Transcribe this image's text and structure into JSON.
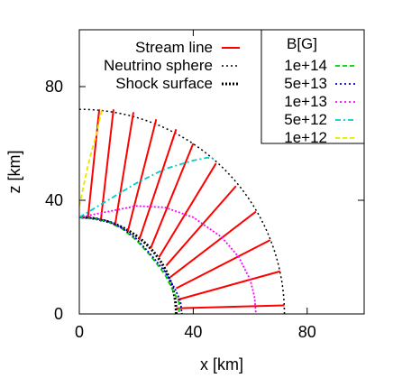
{
  "chart_data": {
    "type": "line",
    "xlabel": "x [km]",
    "ylabel": "z [km]",
    "xlim": [
      0,
      100
    ],
    "ylim": [
      0,
      100
    ],
    "xticks": [
      0,
      40,
      80
    ],
    "yticks": [
      0,
      40,
      80
    ],
    "grid": false,
    "legend_left": {
      "placement": "top-left",
      "entries": [
        {
          "name": "Stream line",
          "color": "#ff0000",
          "style": "solid"
        },
        {
          "name": "Neutrino sphere",
          "color": "#000000",
          "style": "dotted"
        },
        {
          "name": "Shock surface",
          "color": "#000000",
          "style": "dotted-bold"
        }
      ]
    },
    "legend_right": {
      "placement": "top-right",
      "title": "B[G]",
      "entries": [
        {
          "name": "1e+14",
          "color": "#00cc00",
          "style": "dashed"
        },
        {
          "name": "5e+13",
          "color": "#0000cc",
          "style": "dotted"
        },
        {
          "name": "1e+13",
          "color": "#ff00ff",
          "style": "dotted"
        },
        {
          "name": "5e+12",
          "color": "#00cccc",
          "style": "dashdot"
        },
        {
          "name": "1e+12",
          "color": "#e6e600",
          "style": "dashed"
        }
      ]
    },
    "series": [
      {
        "key": "neutrino_sphere",
        "shape": "arc",
        "radius_km": 34,
        "angle_range_deg": [
          0,
          90
        ],
        "color": "#000000"
      },
      {
        "key": "shock_surface",
        "shape": "arc",
        "radius_km": 72,
        "angle_range_deg": [
          0,
          90
        ],
        "color": "#000000"
      },
      {
        "key": "stream_lines",
        "shape": "radial_segments",
        "color": "#ff0000",
        "segments": [
          {
            "x": [
              34,
              72
            ],
            "z": [
              2,
              3
            ]
          },
          {
            "x": [
              34.5,
              70.5
            ],
            "z": [
              5,
              15
            ]
          },
          {
            "x": [
              34,
              67
            ],
            "z": [
              9,
              26
            ]
          },
          {
            "x": [
              32,
              62
            ],
            "z": [
              13,
              36
            ]
          },
          {
            "x": [
              30.5,
              55
            ],
            "z": [
              17,
              45
            ]
          },
          {
            "x": [
              28,
              48
            ],
            "z": [
              20,
              53
            ]
          },
          {
            "x": [
              25,
              40
            ],
            "z": [
              23,
              60
            ]
          },
          {
            "x": [
              21,
              34
            ],
            "z": [
              26,
              65
            ]
          },
          {
            "x": [
              17,
              27
            ],
            "z": [
              29,
              68.5
            ]
          },
          {
            "x": [
              12.5,
              19
            ],
            "z": [
              31,
              71
            ]
          },
          {
            "x": [
              7.5,
              12
            ],
            "z": [
              32.5,
              72
            ]
          },
          {
            "x": [
              3,
              7
            ],
            "z": [
              33.5,
              72
            ]
          }
        ]
      },
      {
        "key": "B_1e14",
        "color": "#00cc00",
        "x": [
          0,
          5,
          10,
          15,
          20,
          25,
          30,
          33,
          35,
          35
        ],
        "z": [
          34,
          33.6,
          32.5,
          30,
          26,
          20.5,
          14,
          8,
          4,
          0
        ]
      },
      {
        "key": "B_5e13",
        "color": "#0000cc",
        "x": [
          0,
          5,
          10,
          15,
          20,
          25,
          30,
          33.5,
          35.5,
          36
        ],
        "z": [
          34,
          33.7,
          32.7,
          30.3,
          26.5,
          21,
          15,
          9,
          4.5,
          0
        ]
      },
      {
        "key": "B_1e13",
        "color": "#ff00ff",
        "x": [
          0,
          10,
          20,
          30,
          40,
          50,
          56,
          60,
          61.5,
          62
        ],
        "z": [
          34,
          36,
          38,
          37.5,
          34,
          27,
          20,
          12,
          6,
          0
        ]
      },
      {
        "key": "B_5e12",
        "color": "#00cccc",
        "x": [
          0,
          5,
          10,
          20,
          30,
          40,
          45,
          48
        ],
        "z": [
          34,
          37,
          40,
          46,
          51,
          54,
          55,
          54.5
        ]
      },
      {
        "key": "B_1e12",
        "color": "#e6e600",
        "x": [
          0,
          1.5,
          3,
          4.5,
          6,
          7,
          8
        ],
        "z": [
          38,
          45,
          52,
          58,
          63,
          68,
          72
        ]
      }
    ]
  }
}
